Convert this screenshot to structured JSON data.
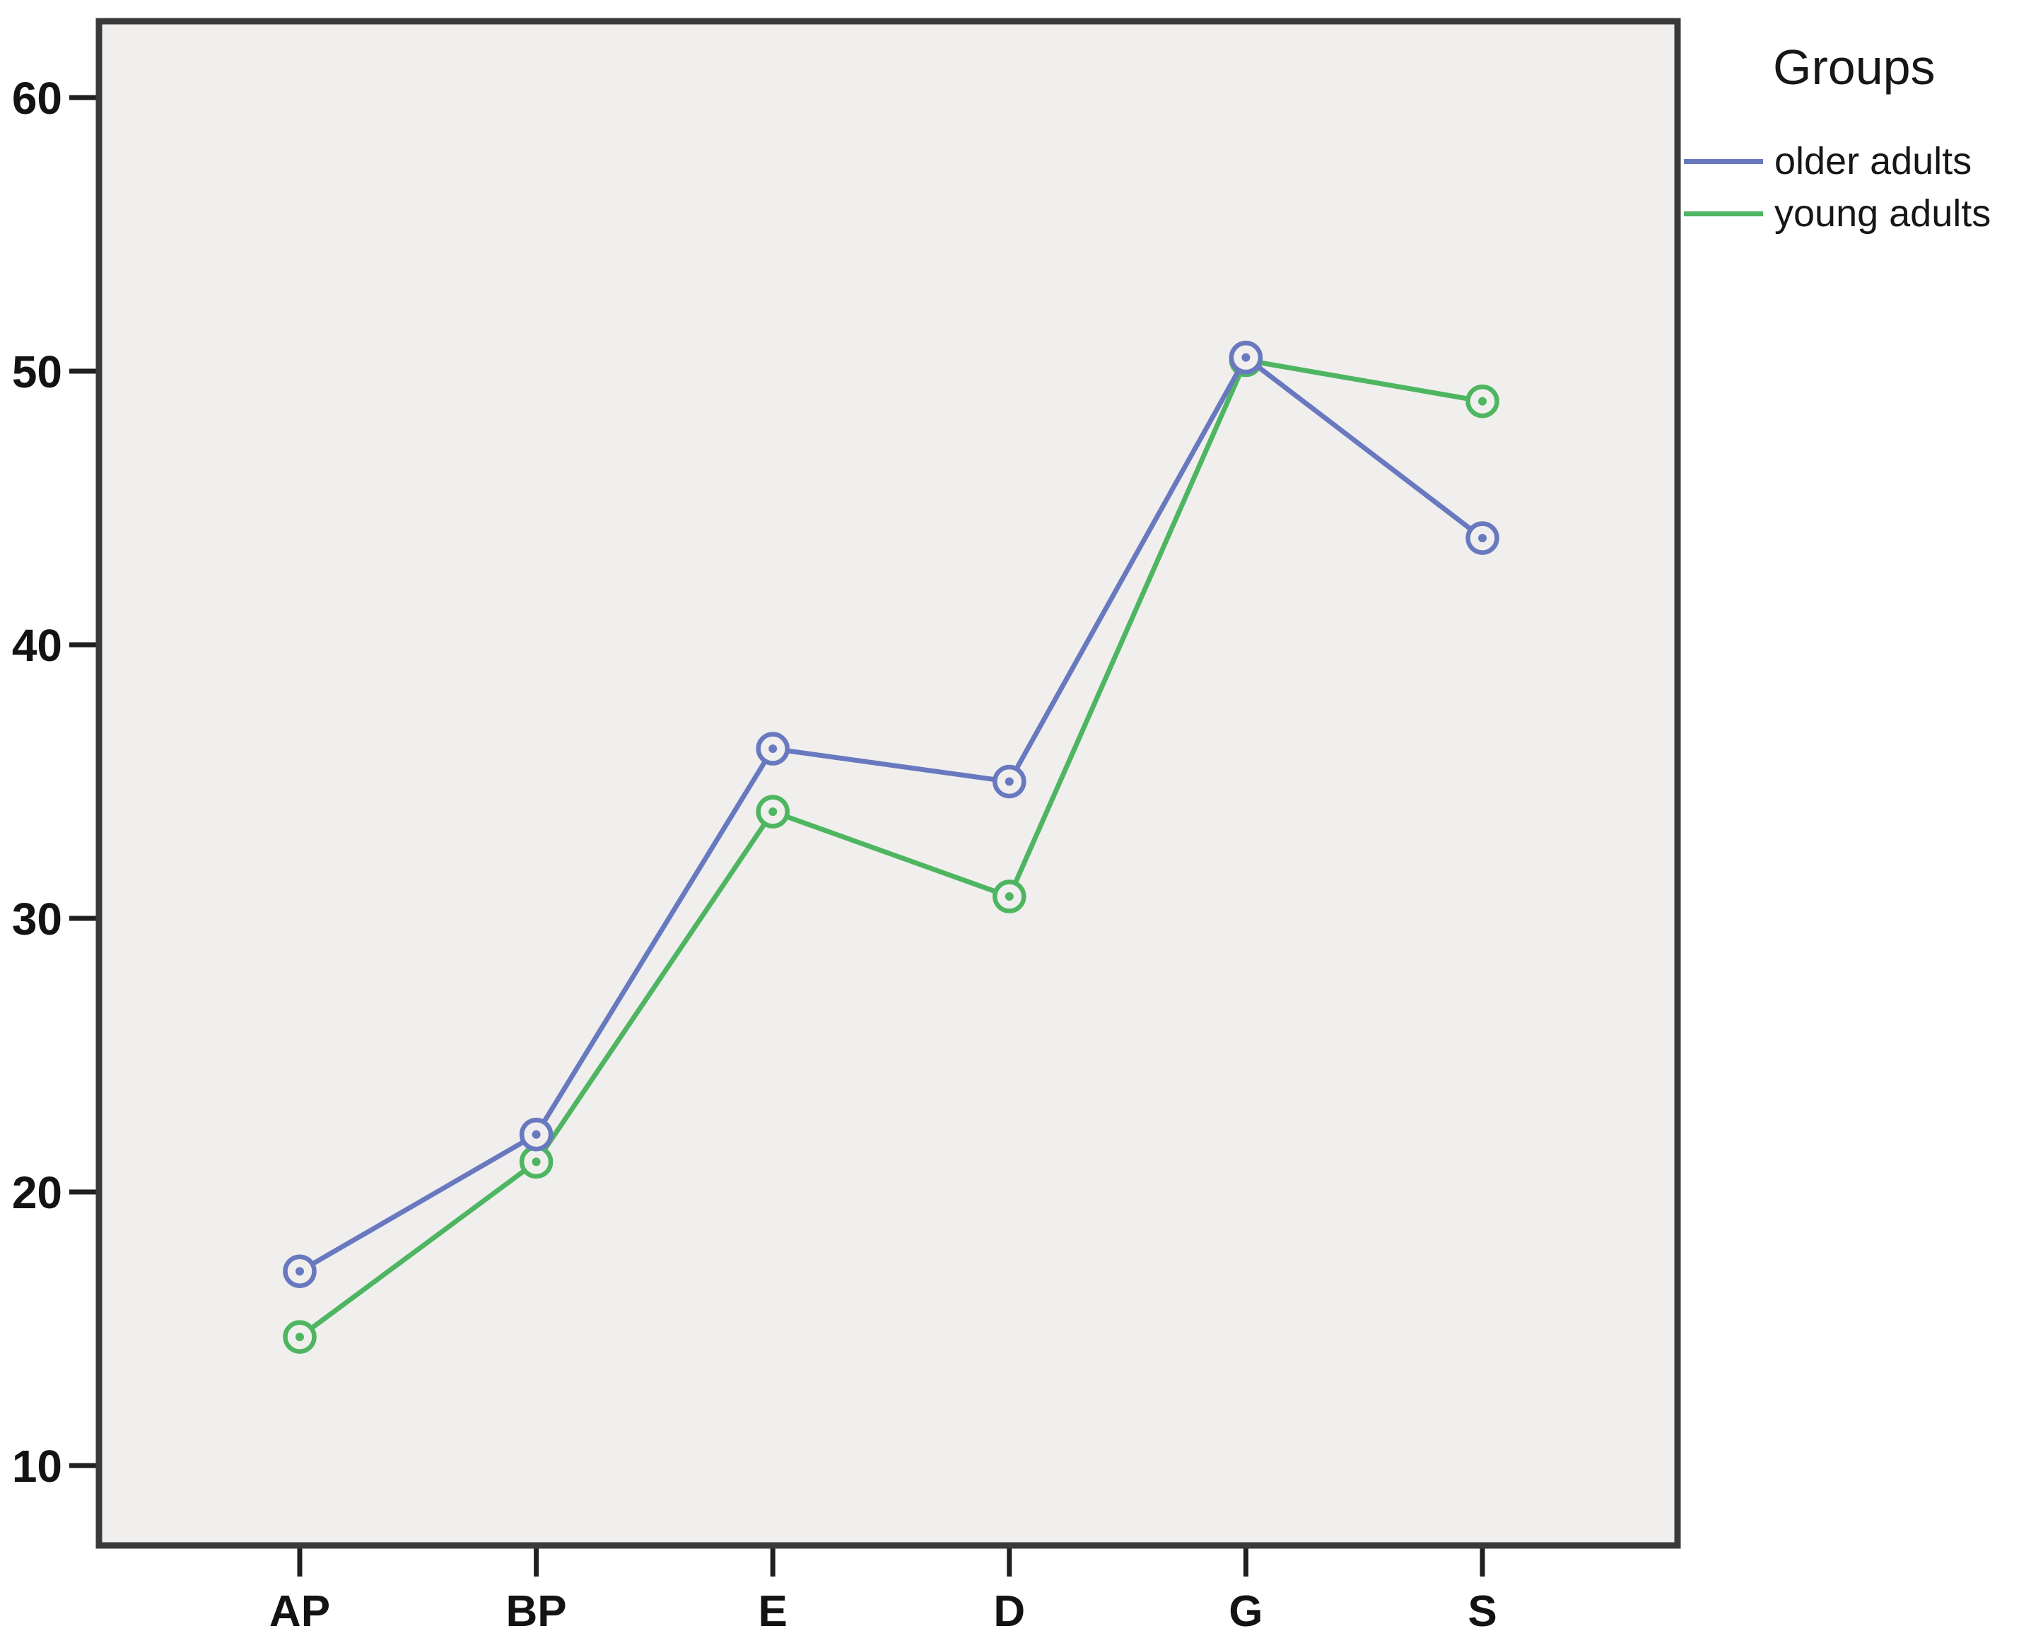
{
  "chart_data": {
    "type": "line",
    "categories": [
      "AP",
      "BP",
      "E",
      "D",
      "G",
      "S"
    ],
    "series": [
      {
        "name": "older adults",
        "color": "#6979BF",
        "values": [
          17.1,
          22.1,
          36.2,
          35.0,
          50.5,
          43.9
        ]
      },
      {
        "name": "young adults",
        "color": "#4EB561",
        "values": [
          14.7,
          21.1,
          33.9,
          30.8,
          50.4,
          48.9
        ]
      }
    ],
    "legend": {
      "title": "Groups",
      "position": "top-right",
      "entries": [
        "older adults",
        "young adults"
      ]
    },
    "y_axis": {
      "ticks": [
        10,
        20,
        30,
        40,
        50,
        60
      ],
      "ylim": [
        7,
        63
      ],
      "label": ""
    },
    "x_axis": {
      "label": "",
      "tick_labels": [
        "AP",
        "BP",
        "E",
        "D",
        "G",
        "S"
      ]
    },
    "grid": false,
    "marker_style": "open-circle",
    "plot_bg": "#f0efee",
    "frame_color": "#3a3a3a",
    "axis_color": "#1f1f1f",
    "text_color": "#131313"
  }
}
